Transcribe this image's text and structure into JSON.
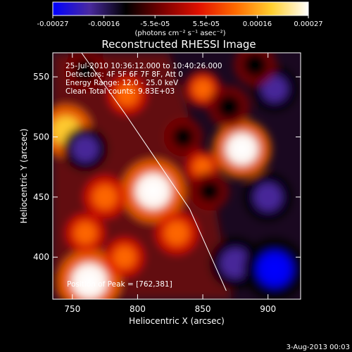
{
  "app": {
    "date_stamp": "3-Aug-2013 00:03"
  },
  "colorbar": {
    "ticks": [
      "-0.00027",
      "-0.00016",
      "-5.5e-05",
      "5.5e-05",
      "0.00016",
      "0.00027"
    ],
    "unit": "(photons cm⁻² s⁻¹ asec⁻²)",
    "stops": [
      "#0000ff",
      "#4a2aa0",
      "#000000",
      "#7a0000",
      "#e01000",
      "#ff6a00",
      "#ffd030",
      "#ffffff"
    ]
  },
  "chart_data": {
    "type": "heatmap",
    "title": "Reconstructed RHESSI Image",
    "xlabel": "Heliocentric X (arcsec)",
    "ylabel": "Heliocentric Y (arcsec)",
    "xlim": [
      735,
      925
    ],
    "ylim": [
      365,
      570
    ],
    "xticks": [
      750,
      800,
      850,
      900
    ],
    "yticks": [
      400,
      450,
      500,
      550
    ],
    "grid": false,
    "annotations": [
      "25-Jul-2010 10:36:12.000 to 10:40:26.000",
      "Detectors: 4F 5F 6F 7F 8F, Att 0",
      "Energy Range: 12.0 - 25.0 keV",
      "Clean    Total counts: 9.83E+03"
    ],
    "peak_label": "Position of Peak = [762,381]",
    "limb": [
      [
        757,
        570
      ],
      [
        790,
        520
      ],
      [
        815,
        480
      ],
      [
        840,
        440
      ],
      [
        868,
        372
      ]
    ],
    "blobs": [
      {
        "x": 880,
        "y": 490,
        "value": 0.00024
      },
      {
        "x": 812,
        "y": 455,
        "value": 0.00027
      },
      {
        "x": 763,
        "y": 380,
        "value": 0.00027
      },
      {
        "x": 745,
        "y": 505,
        "value": 0.0002
      },
      {
        "x": 792,
        "y": 535,
        "value": 0.00012
      },
      {
        "x": 775,
        "y": 450,
        "value": 0.00014
      },
      {
        "x": 830,
        "y": 420,
        "value": 0.00014
      },
      {
        "x": 790,
        "y": 400,
        "value": 0.00012
      },
      {
        "x": 850,
        "y": 540,
        "value": 0.0001
      },
      {
        "x": 760,
        "y": 420,
        "value": 0.00012
      },
      {
        "x": 850,
        "y": 475,
        "value": 8e-05
      },
      {
        "x": 900,
        "y": 450,
        "value": -0.00018
      },
      {
        "x": 875,
        "y": 395,
        "value": -0.0002
      },
      {
        "x": 905,
        "y": 390,
        "value": -0.00027
      },
      {
        "x": 855,
        "y": 455,
        "value": -0.00012
      },
      {
        "x": 870,
        "y": 525,
        "value": -0.00014
      },
      {
        "x": 905,
        "y": 540,
        "value": -0.00016
      },
      {
        "x": 760,
        "y": 490,
        "value": -0.00016
      },
      {
        "x": 760,
        "y": 555,
        "value": -0.00014
      },
      {
        "x": 835,
        "y": 500,
        "value": -0.00012
      },
      {
        "x": 890,
        "y": 560,
        "value": -0.00014
      }
    ]
  }
}
